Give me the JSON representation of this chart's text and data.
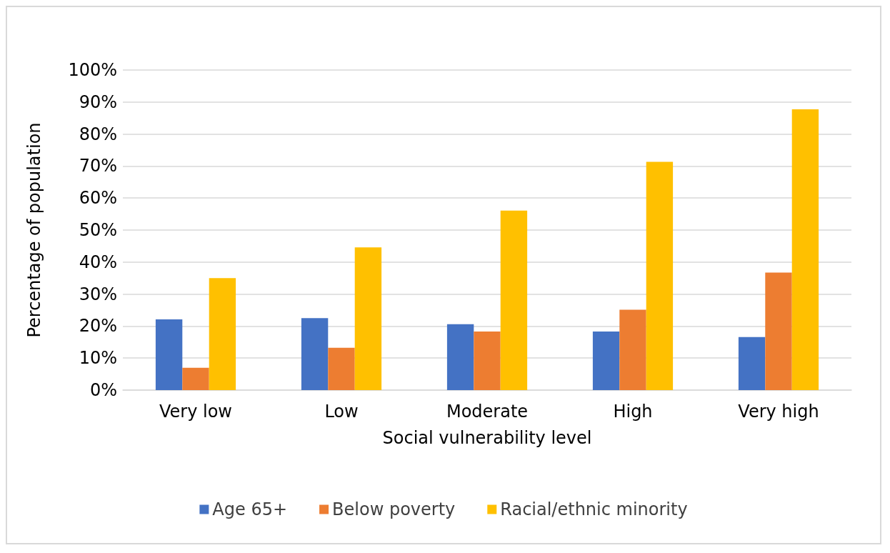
{
  "chart_data": {
    "type": "bar",
    "xlabel": "Social vulnerability level",
    "ylabel": "Percentage of population",
    "categories": [
      "Very low",
      "Low",
      "Moderate",
      "High",
      "Very high"
    ],
    "series": [
      {
        "name": "Age 65+",
        "color": "#4472c4",
        "values": [
          22.1,
          22.5,
          20.6,
          18.3,
          16.6
        ]
      },
      {
        "name": "Below poverty",
        "color": "#ed7d31",
        "values": [
          7.0,
          13.2,
          18.3,
          25.1,
          36.7
        ]
      },
      {
        "name": "Racial/ethnic minority",
        "color": "#ffc000",
        "values": [
          35.0,
          44.6,
          56.1,
          71.3,
          87.7
        ]
      }
    ],
    "ylim": [
      0,
      100
    ],
    "yticks": [
      {
        "value": 0,
        "label": "0%"
      },
      {
        "value": 10,
        "label": "10%"
      },
      {
        "value": 20,
        "label": "20%"
      },
      {
        "value": 30,
        "label": "30%"
      },
      {
        "value": 40,
        "label": "40%"
      },
      {
        "value": 50,
        "label": "50%"
      },
      {
        "value": 60,
        "label": "60%"
      },
      {
        "value": 70,
        "label": "70%"
      },
      {
        "value": 80,
        "label": "80%"
      },
      {
        "value": 90,
        "label": "90%"
      },
      {
        "value": 100,
        "label": "100%"
      }
    ],
    "grid": "y",
    "legend": "bottom"
  }
}
